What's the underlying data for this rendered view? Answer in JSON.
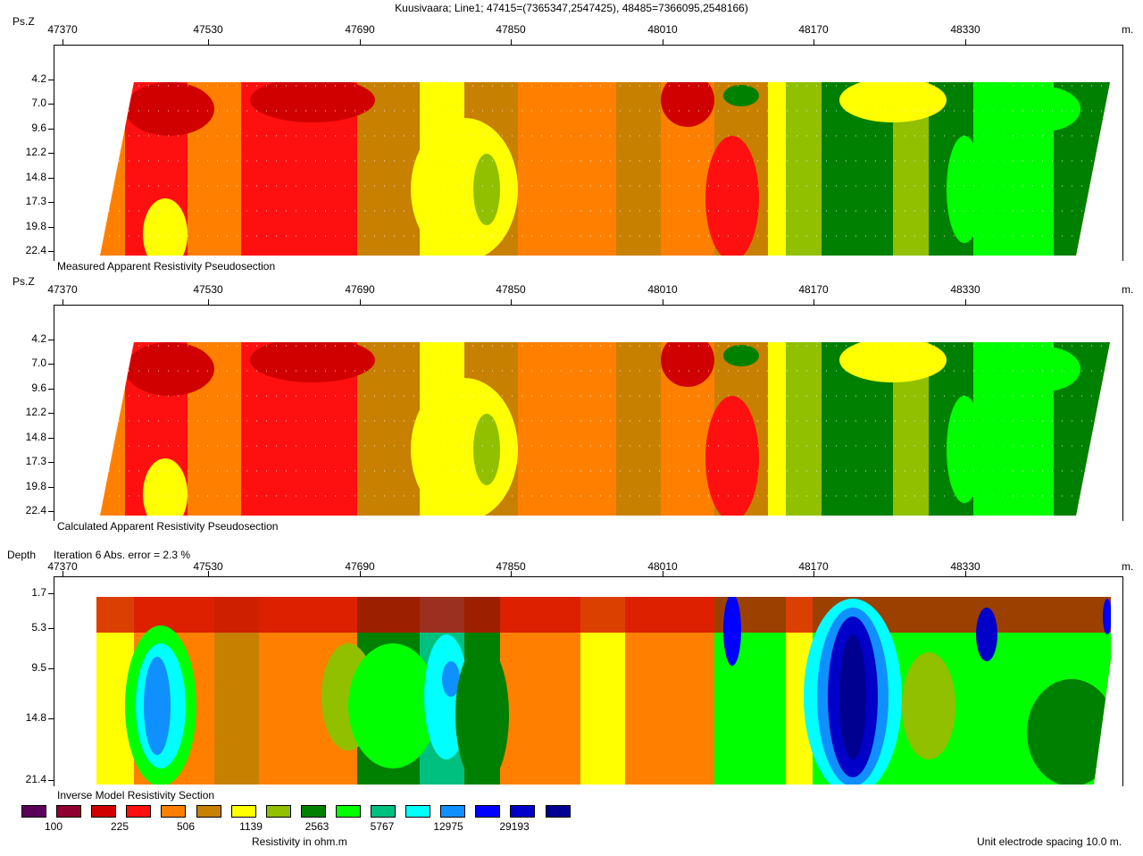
{
  "title": "Kuusivaara; Line1; 47415=(7365347,2547425), 48485=7366095,2548166)",
  "x_unit": "m.",
  "x_ticks": [
    "47370",
    "47530",
    "47690",
    "47850",
    "48010",
    "48170",
    "48330"
  ],
  "panels": [
    {
      "axis_title": "Ps.Z",
      "caption": "Measured Apparent Resistivity Pseudosection",
      "y_ticks": [
        "4.2",
        "7.0",
        "9.6",
        "12.2",
        "14.8",
        "17.3",
        "19.8",
        "22.4"
      ]
    },
    {
      "axis_title": "Ps.Z",
      "caption": "Calculated Apparent Resistivity Pseudosection",
      "y_ticks": [
        "4.2",
        "7.0",
        "9.6",
        "12.2",
        "14.8",
        "17.3",
        "19.8",
        "22.4"
      ]
    },
    {
      "axis_title": "Depth",
      "caption": "Inverse Model Resistivity Section",
      "subtitle": "Iteration 6 Abs. error = 2.3 %",
      "y_ticks": [
        "1.7",
        "5.3",
        "9.5",
        "14.8",
        "21.4"
      ]
    }
  ],
  "legend": {
    "colors": [
      "#5a005a",
      "#900030",
      "#d00000",
      "#ff1010",
      "#ff8000",
      "#c88000",
      "#ffff00",
      "#90c000",
      "#008000",
      "#00ff00",
      "#00c080",
      "#00ffff",
      "#1090ff",
      "#0000ff",
      "#0000c8",
      "#000090",
      "#000060"
    ],
    "labels": [
      "100",
      "225",
      "506",
      "1139",
      "2563",
      "5767",
      "12975",
      "29193"
    ],
    "unit_label": "Resistivity in ohm.m"
  },
  "footer_note": "Unit electrode spacing 10.0 m.",
  "chart_data": [
    {
      "type": "heatmap",
      "title": "Measured Apparent Resistivity Pseudosection",
      "xlabel": "",
      "ylabel": "Ps.Z",
      "x_range": [
        47370,
        48485
      ],
      "y_range": [
        4.2,
        22.4
      ],
      "color_scale_ohm_m": [
        100,
        225,
        506,
        1139,
        2563,
        5767,
        12975,
        29193
      ]
    },
    {
      "type": "heatmap",
      "title": "Calculated Apparent Resistivity Pseudosection",
      "xlabel": "",
      "ylabel": "Ps.Z",
      "x_range": [
        47370,
        48485
      ],
      "y_range": [
        4.2,
        22.4
      ],
      "color_scale_ohm_m": [
        100,
        225,
        506,
        1139,
        2563,
        5767,
        12975,
        29193
      ]
    },
    {
      "type": "heatmap",
      "title": "Inverse Model Resistivity Section",
      "xlabel": "",
      "ylabel": "Depth",
      "x_range": [
        47370,
        48485
      ],
      "y_range": [
        1.7,
        21.4
      ],
      "color_scale_ohm_m": [
        100,
        225,
        506,
        1139,
        2563,
        5767,
        12975,
        29193
      ]
    }
  ]
}
